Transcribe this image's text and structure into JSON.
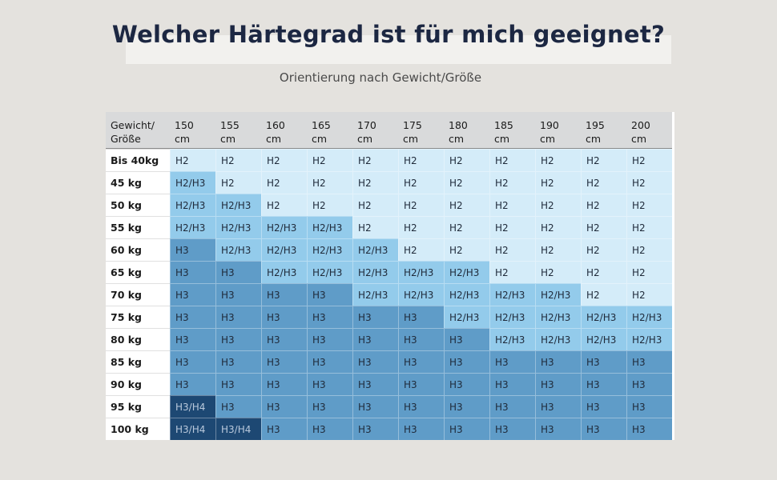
{
  "header": {
    "title": "Welcher Härtegrad ist für mich geeignet?",
    "subtitle": "Orientierung nach Gewicht/Größe"
  },
  "table": {
    "corner": "Gewicht/\nGröße",
    "columns": [
      "150\ncm",
      "155\ncm",
      "160\ncm",
      "165\ncm",
      "170\ncm",
      "175\ncm",
      "180\ncm",
      "185\ncm",
      "190\ncm",
      "195\ncm",
      "200\ncm"
    ],
    "rows": [
      {
        "label": "Bis 40kg",
        "cells": [
          "H2",
          "H2",
          "H2",
          "H2",
          "H2",
          "H2",
          "H2",
          "H2",
          "H2",
          "H2",
          "H2"
        ]
      },
      {
        "label": "45 kg",
        "cells": [
          "H2/H3",
          "H2",
          "H2",
          "H2",
          "H2",
          "H2",
          "H2",
          "H2",
          "H2",
          "H2",
          "H2"
        ]
      },
      {
        "label": "50 kg",
        "cells": [
          "H2/H3",
          "H2/H3",
          "H2",
          "H2",
          "H2",
          "H2",
          "H2",
          "H2",
          "H2",
          "H2",
          "H2"
        ]
      },
      {
        "label": "55 kg",
        "cells": [
          "H2/H3",
          "H2/H3",
          "H2/H3",
          "H2/H3",
          "H2",
          "H2",
          "H2",
          "H2",
          "H2",
          "H2",
          "H2"
        ]
      },
      {
        "label": "60 kg",
        "cells": [
          "H3",
          "H2/H3",
          "H2/H3",
          "H2/H3",
          "H2/H3",
          "H2",
          "H2",
          "H2",
          "H2",
          "H2",
          "H2"
        ]
      },
      {
        "label": "65 kg",
        "cells": [
          "H3",
          "H3",
          "H2/H3",
          "H2/H3",
          "H2/H3",
          "H2/H3",
          "H2/H3",
          "H2",
          "H2",
          "H2",
          "H2"
        ]
      },
      {
        "label": "70 kg",
        "cells": [
          "H3",
          "H3",
          "H3",
          "H3",
          "H2/H3",
          "H2/H3",
          "H2/H3",
          "H2/H3",
          "H2/H3",
          "H2",
          "H2"
        ]
      },
      {
        "label": "75 kg",
        "cells": [
          "H3",
          "H3",
          "H3",
          "H3",
          "H3",
          "H3",
          "H2/H3",
          "H2/H3",
          "H2/H3",
          "H2/H3",
          "H2/H3"
        ]
      },
      {
        "label": "80 kg",
        "cells": [
          "H3",
          "H3",
          "H3",
          "H3",
          "H3",
          "H3",
          "H3",
          "H2/H3",
          "H2/H3",
          "H2/H3",
          "H2/H3"
        ]
      },
      {
        "label": "85 kg",
        "cells": [
          "H3",
          "H3",
          "H3",
          "H3",
          "H3",
          "H3",
          "H3",
          "H3",
          "H3",
          "H3",
          "H3"
        ]
      },
      {
        "label": "90 kg",
        "cells": [
          "H3",
          "H3",
          "H3",
          "H3",
          "H3",
          "H3",
          "H3",
          "H3",
          "H3",
          "H3",
          "H3"
        ]
      },
      {
        "label": "95 kg",
        "cells": [
          "H3/H4",
          "H3",
          "H3",
          "H3",
          "H3",
          "H3",
          "H3",
          "H3",
          "H3",
          "H3",
          "H3"
        ]
      },
      {
        "label": "100 kg",
        "cells": [
          "H3/H4",
          "H3/H4",
          "H3",
          "H3",
          "H3",
          "H3",
          "H3",
          "H3",
          "H3",
          "H3",
          "H3"
        ]
      }
    ]
  }
}
